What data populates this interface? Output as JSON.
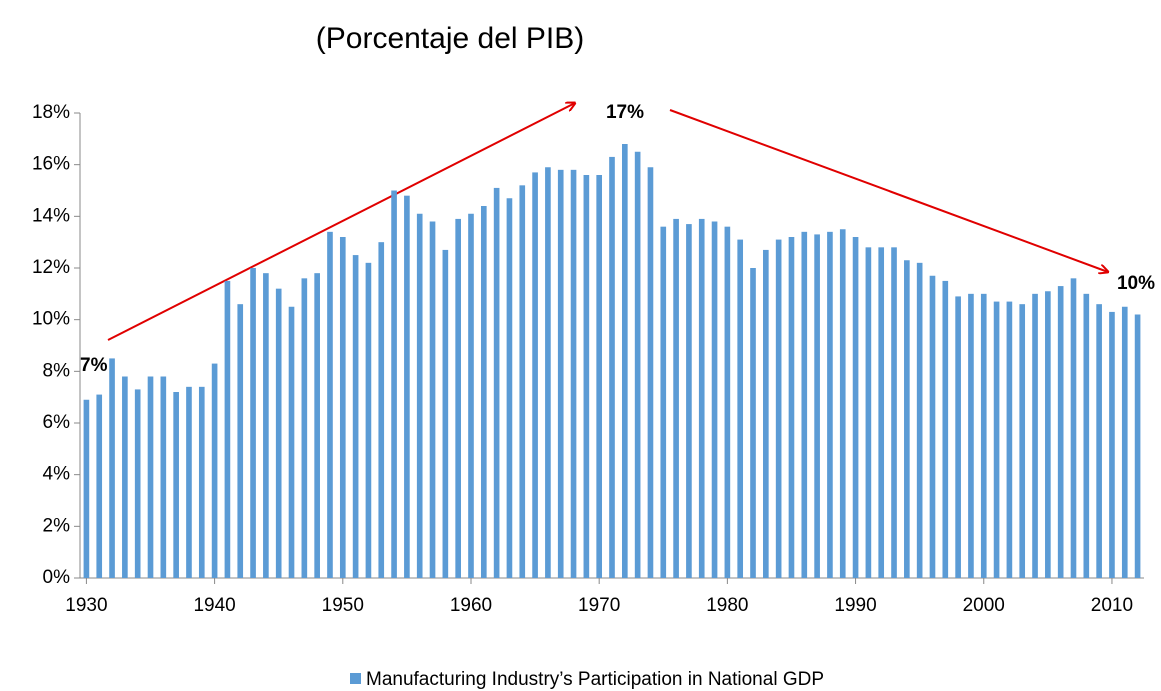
{
  "chart_data": {
    "type": "bar",
    "title": "(Porcentaje del PIB)",
    "x": [
      1930,
      1931,
      1932,
      1933,
      1934,
      1935,
      1936,
      1937,
      1938,
      1939,
      1940,
      1941,
      1942,
      1943,
      1944,
      1945,
      1946,
      1947,
      1948,
      1949,
      1950,
      1951,
      1952,
      1953,
      1954,
      1955,
      1956,
      1957,
      1958,
      1959,
      1960,
      1961,
      1962,
      1963,
      1964,
      1965,
      1966,
      1967,
      1968,
      1969,
      1970,
      1971,
      1972,
      1973,
      1974,
      1975,
      1976,
      1977,
      1978,
      1979,
      1980,
      1981,
      1982,
      1983,
      1984,
      1985,
      1986,
      1987,
      1988,
      1989,
      1990,
      1991,
      1992,
      1993,
      1994,
      1995,
      1996,
      1997,
      1998,
      1999,
      2000,
      2001,
      2002,
      2003,
      2004,
      2005,
      2006,
      2007,
      2008,
      2009,
      2010,
      2011,
      2012
    ],
    "series": [
      {
        "name": "Manufacturing Industry’s Participation in National GDP",
        "color": "#5b9bd5",
        "values": [
          6.9,
          7.1,
          8.5,
          7.8,
          7.3,
          7.8,
          7.8,
          7.2,
          7.4,
          7.4,
          8.3,
          11.5,
          10.6,
          12.0,
          11.8,
          11.2,
          10.5,
          11.6,
          11.8,
          13.4,
          13.2,
          12.5,
          12.2,
          13.0,
          15.0,
          14.8,
          14.1,
          13.8,
          12.7,
          13.9,
          14.1,
          14.4,
          15.1,
          14.7,
          15.2,
          15.7,
          15.9,
          15.8,
          15.8,
          15.6,
          15.6,
          16.3,
          16.8,
          16.5,
          15.9,
          13.6,
          13.9,
          13.7,
          13.9,
          13.8,
          13.6,
          13.1,
          12.0,
          12.7,
          13.1,
          13.2,
          13.4,
          13.3,
          13.4,
          13.5,
          13.2,
          12.8,
          12.8,
          12.8,
          12.3,
          12.2,
          11.7,
          11.5,
          10.9,
          11.0,
          11.0,
          10.7,
          10.7,
          10.6,
          11.0,
          11.1,
          11.3,
          11.6,
          11.0,
          10.6,
          10.3,
          10.5,
          10.2
        ]
      }
    ],
    "xlim": [
      1929.5,
      2012.5
    ],
    "xticks": [
      1930,
      1940,
      1950,
      1960,
      1970,
      1980,
      1990,
      2000,
      2010
    ],
    "ylim": [
      0,
      18
    ],
    "yticks": [
      {
        "value": 0,
        "label": "0%"
      },
      {
        "value": 2,
        "label": "2%"
      },
      {
        "value": 4,
        "label": "4%"
      },
      {
        "value": 6,
        "label": "6%"
      },
      {
        "value": 8,
        "label": "8%"
      },
      {
        "value": 10,
        "label": "10%"
      },
      {
        "value": 12,
        "label": "12%"
      },
      {
        "value": 14,
        "label": "14%"
      },
      {
        "value": 16,
        "label": "16%"
      },
      {
        "value": 18,
        "label": "18%"
      }
    ],
    "annotations": [
      "7%",
      "17%",
      "10%"
    ],
    "legend": "bottom"
  }
}
